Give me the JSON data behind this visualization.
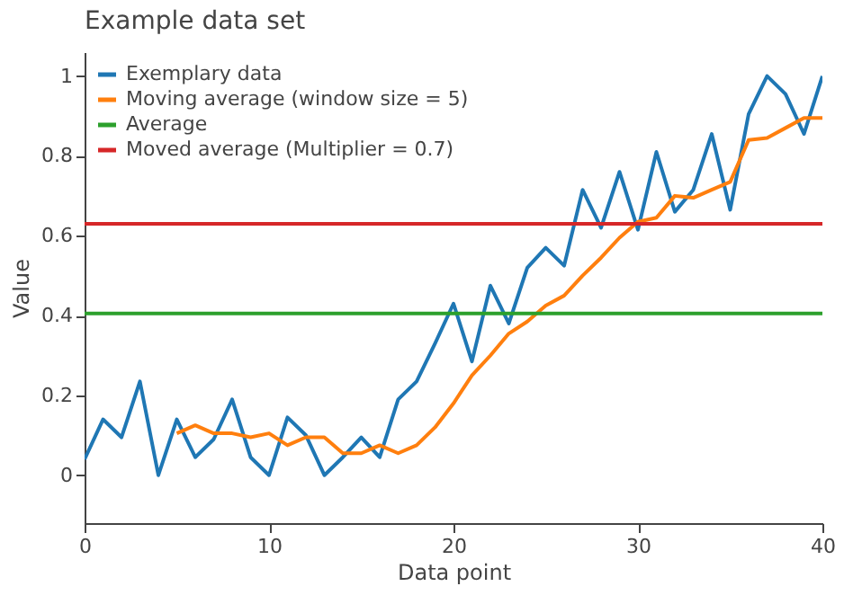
{
  "chart_data": {
    "type": "line",
    "title": "Example data set",
    "xlabel": "Data point",
    "ylabel": "Value",
    "xlim": [
      0,
      40
    ],
    "xticks": [
      0,
      10,
      20,
      30,
      40
    ],
    "ylim": [
      -0.12,
      1.06
    ],
    "yticks": [
      0,
      0.2,
      0.4,
      0.6,
      0.8,
      1
    ],
    "grid": false,
    "legend": "top left",
    "line_style": "solid",
    "marker": "none",
    "series": [
      {
        "name": "Exemplary data",
        "color": "#1f77b4",
        "x": [
          0,
          1,
          2,
          3,
          4,
          5,
          6,
          7,
          8,
          9,
          10,
          11,
          12,
          13,
          14,
          15,
          16,
          17,
          18,
          19,
          20,
          21,
          22,
          23,
          24,
          25,
          26,
          27,
          28,
          29,
          30,
          31,
          32,
          33,
          34,
          35,
          36,
          37,
          38,
          39,
          40
        ],
        "values": [
          0.04,
          0.14,
          0.095,
          0.235,
          0.0,
          0.14,
          0.045,
          0.09,
          0.19,
          0.045,
          0.0,
          0.145,
          0.1,
          0.0,
          0.045,
          0.095,
          0.045,
          0.19,
          0.235,
          0.33,
          0.43,
          0.285,
          0.475,
          0.38,
          0.52,
          0.57,
          0.525,
          0.715,
          0.62,
          0.76,
          0.615,
          0.81,
          0.66,
          0.715,
          0.855,
          0.665,
          0.905,
          1.0,
          0.955,
          0.855,
          1.0
        ]
      },
      {
        "name": "Moving average (window size = 5)",
        "color": "#ff7f0e",
        "x": [
          5,
          6,
          7,
          8,
          9,
          10,
          11,
          12,
          13,
          14,
          15,
          16,
          17,
          18,
          19,
          20,
          21,
          22,
          23,
          24,
          25,
          26,
          27,
          28,
          29,
          30,
          31,
          32,
          33,
          34,
          35,
          36,
          37,
          38,
          39,
          40
        ],
        "values": [
          0.105,
          0.125,
          0.105,
          0.105,
          0.095,
          0.105,
          0.075,
          0.095,
          0.095,
          0.055,
          0.055,
          0.075,
          0.055,
          0.075,
          0.12,
          0.18,
          0.25,
          0.3,
          0.355,
          0.385,
          0.425,
          0.45,
          0.5,
          0.545,
          0.595,
          0.635,
          0.645,
          0.7,
          0.695,
          0.715,
          0.735,
          0.84,
          0.845,
          0.87,
          0.895,
          0.895
        ]
      },
      {
        "name": "Average",
        "color": "#2ca02c",
        "x": [
          0,
          40
        ],
        "values": [
          0.405,
          0.405
        ]
      },
      {
        "name": "Moved average (Multiplier = 0.7)",
        "color": "#d62728",
        "x": [
          0,
          40
        ],
        "values": [
          0.63,
          0.63
        ]
      }
    ]
  }
}
